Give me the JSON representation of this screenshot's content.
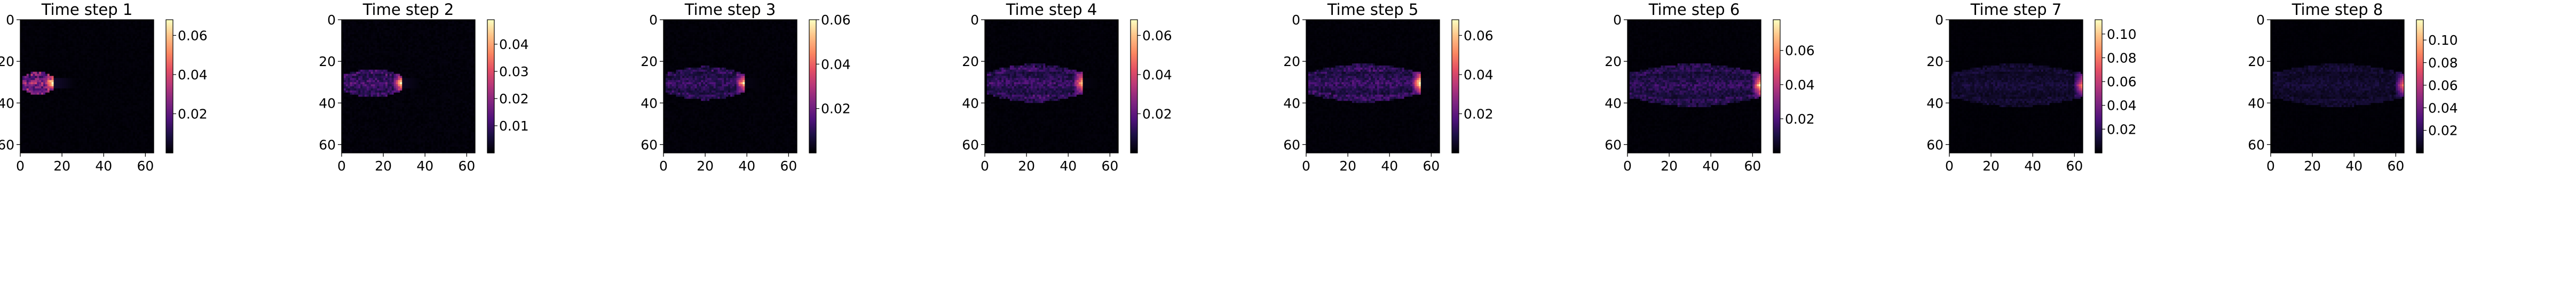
{
  "chart_data": [
    {
      "type": "heatmap",
      "title": "Time step 1",
      "xticks": [
        0,
        20,
        40,
        60
      ],
      "yticks": [
        0,
        20,
        40,
        60
      ],
      "xlim": [
        0,
        64
      ],
      "ylim": [
        64,
        0
      ],
      "colormap": "magma",
      "colorbar": {
        "vmin": 0,
        "vmax": 0.068,
        "ticks": [
          "0.02",
          "0.04",
          "0.06"
        ]
      },
      "plume": {
        "x_start": 1,
        "x_front": 15,
        "y_center": 30,
        "half_width": 5,
        "front_intensity": 0.045,
        "body_intensity": 0.028,
        "wake_intensity": 0.006
      }
    },
    {
      "type": "heatmap",
      "title": "Time step 2",
      "xticks": [
        0,
        20,
        40,
        60
      ],
      "yticks": [
        0,
        20,
        40,
        60
      ],
      "xlim": [
        0,
        64
      ],
      "ylim": [
        64,
        0
      ],
      "colormap": "magma",
      "colorbar": {
        "vmin": 0,
        "vmax": 0.049,
        "ticks": [
          "0.01",
          "0.02",
          "0.03",
          "0.04"
        ]
      },
      "plume": {
        "x_start": 1,
        "x_front": 28,
        "y_center": 30,
        "half_width": 6,
        "front_intensity": 0.04,
        "body_intensity": 0.012,
        "wake_intensity": 0.003
      }
    },
    {
      "type": "heatmap",
      "title": "Time step 3",
      "xticks": [
        0,
        20,
        40,
        60
      ],
      "yticks": [
        0,
        20,
        40,
        60
      ],
      "xlim": [
        0,
        64
      ],
      "ylim": [
        64,
        0
      ],
      "colormap": "magma",
      "colorbar": {
        "vmin": 0,
        "vmax": 0.06,
        "ticks": [
          "0.02",
          "0.04",
          "0.06"
        ]
      },
      "plume": {
        "x_start": 1,
        "x_front": 38,
        "y_center": 30,
        "half_width": 7,
        "front_intensity": 0.045,
        "body_intensity": 0.012,
        "wake_intensity": 0.002
      }
    },
    {
      "type": "heatmap",
      "title": "Time step 4",
      "xticks": [
        0,
        20,
        40,
        60
      ],
      "yticks": [
        0,
        20,
        40,
        60
      ],
      "xlim": [
        0,
        64
      ],
      "ylim": [
        64,
        0
      ],
      "colormap": "magma",
      "colorbar": {
        "vmin": 0,
        "vmax": 0.068,
        "ticks": [
          "0.02",
          "0.04",
          "0.06"
        ]
      },
      "plume": {
        "x_start": 1,
        "x_front": 46,
        "y_center": 30,
        "half_width": 8,
        "front_intensity": 0.05,
        "body_intensity": 0.014,
        "wake_intensity": 0.002
      }
    },
    {
      "type": "heatmap",
      "title": "Time step 5",
      "xticks": [
        0,
        20,
        40,
        60
      ],
      "yticks": [
        0,
        20,
        40,
        60
      ],
      "xlim": [
        0,
        64
      ],
      "ylim": [
        64,
        0
      ],
      "colormap": "magma",
      "colorbar": {
        "vmin": 0,
        "vmax": 0.068,
        "ticks": [
          "0.02",
          "0.04",
          "0.06"
        ]
      },
      "plume": {
        "x_start": 1,
        "x_front": 54,
        "y_center": 30,
        "half_width": 8,
        "front_intensity": 0.06,
        "body_intensity": 0.014,
        "wake_intensity": 0.002
      }
    },
    {
      "type": "heatmap",
      "title": "Time step 6",
      "xticks": [
        0,
        20,
        40,
        60
      ],
      "yticks": [
        0,
        20,
        40,
        60
      ],
      "xlim": [
        0,
        64
      ],
      "ylim": [
        64,
        0
      ],
      "colormap": "magma",
      "colorbar": {
        "vmin": 0,
        "vmax": 0.078,
        "ticks": [
          "0.02",
          "0.04",
          "0.06"
        ]
      },
      "plume": {
        "x_start": 1,
        "x_front": 63,
        "y_center": 31,
        "half_width": 9,
        "front_intensity": 0.065,
        "body_intensity": 0.014,
        "wake_intensity": 0.002
      }
    },
    {
      "type": "heatmap",
      "title": "Time step 7",
      "xticks": [
        0,
        20,
        40,
        60
      ],
      "yticks": [
        0,
        20,
        40,
        60
      ],
      "xlim": [
        0,
        64
      ],
      "ylim": [
        64,
        0
      ],
      "colormap": "magma",
      "colorbar": {
        "vmin": 0,
        "vmax": 0.112,
        "ticks": [
          "0.02",
          "0.04",
          "0.06",
          "0.08",
          "0.10"
        ]
      },
      "plume": {
        "x_start": 1,
        "x_front": 63,
        "y_center": 31,
        "half_width": 9,
        "front_intensity": 0.07,
        "body_intensity": 0.012,
        "wake_intensity": 0.002
      }
    },
    {
      "type": "heatmap",
      "title": "Time step 8",
      "xticks": [
        0,
        20,
        40,
        60
      ],
      "yticks": [
        0,
        20,
        40,
        60
      ],
      "xlim": [
        0,
        64
      ],
      "ylim": [
        64,
        0
      ],
      "colormap": "magma",
      "colorbar": {
        "vmin": 0,
        "vmax": 0.118,
        "ticks": [
          "0.02",
          "0.04",
          "0.06",
          "0.08",
          "0.10"
        ]
      },
      "plume": {
        "x_start": 1,
        "x_front": 63,
        "y_center": 31,
        "half_width": 9,
        "front_intensity": 0.075,
        "body_intensity": 0.012,
        "wake_intensity": 0.002
      }
    }
  ]
}
